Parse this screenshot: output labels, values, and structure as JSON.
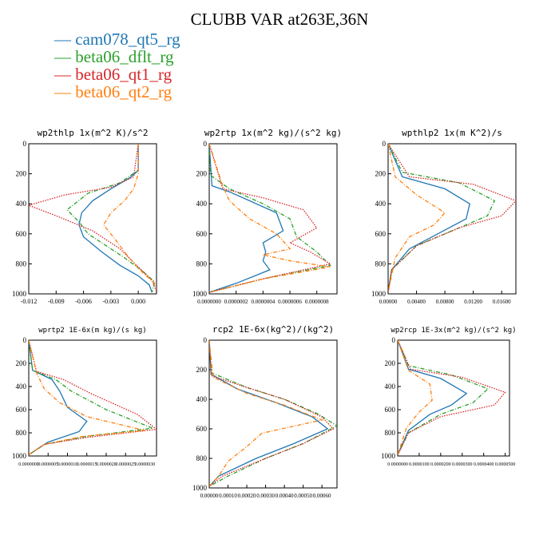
{
  "title": "CLUBB VAR at263E,36N",
  "colors": {
    "cam078_qt5_rg": "#1f77b4",
    "beta06_dflt_rg": "#2ca02c",
    "beta06_qt1_rg": "#d62728",
    "beta06_qt2_rg": "#ff7f0e"
  },
  "legend": [
    {
      "name": "cam078_qt5_rg",
      "color": "#1f77b4"
    },
    {
      "name": "beta06_dflt_rg",
      "color": "#2ca02c"
    },
    {
      "name": "beta06_qt1_rg",
      "color": "#d62728"
    },
    {
      "name": "beta06_qt2_rg",
      "color": "#ff7f0e"
    }
  ],
  "chart_data": [
    {
      "type": "line",
      "title": "wp2thlp  1x(m^2 K)/s^2",
      "xlim": [
        -0.012,
        0.002
      ],
      "ylim": [
        1000,
        0
      ],
      "xticks": [
        "-0.012",
        "-0.009",
        "-0.006",
        "-0.003",
        "0.000"
      ],
      "xtick_values": [
        -0.012,
        -0.009,
        -0.006,
        -0.003,
        0.0
      ],
      "yticks": [
        "0",
        "200",
        "400",
        "600",
        "800",
        "1000"
      ],
      "ytick_values": [
        0,
        200,
        400,
        600,
        800,
        1000
      ],
      "series": [
        {
          "name": "cam078_qt5_rg",
          "style": "solid",
          "x": [
            0,
            0,
            -0.001,
            -0.003,
            -0.005,
            -0.0062,
            -0.0065,
            -0.006,
            -0.004,
            -0.002,
            0,
            0.0012,
            0.0015
          ],
          "y": [
            0,
            180,
            230,
            300,
            380,
            460,
            540,
            620,
            720,
            810,
            880,
            940,
            990
          ]
        },
        {
          "name": "beta06_dflt_rg",
          "style": "dashdot",
          "x": [
            0,
            0,
            -0.002,
            -0.0055,
            -0.0078,
            -0.0065,
            -0.0055,
            -0.0035,
            -0.0015,
            0.0005,
            0.0018,
            0.0015
          ],
          "y": [
            0,
            175,
            260,
            330,
            440,
            520,
            600,
            680,
            760,
            850,
            920,
            990
          ]
        },
        {
          "name": "beta06_qt1_rg",
          "style": "dotted",
          "x": [
            0,
            -0.0005,
            -0.003,
            -0.008,
            -0.012,
            -0.009,
            -0.005,
            -0.002,
            0,
            0.0015,
            0.002
          ],
          "y": [
            0,
            220,
            290,
            340,
            410,
            480,
            580,
            700,
            820,
            910,
            985
          ]
        },
        {
          "name": "beta06_qt2_rg",
          "style": "dashdot",
          "x": [
            0,
            0,
            -0.0005,
            -0.0015,
            -0.003,
            -0.0038,
            -0.0025,
            -0.001,
            0.0005,
            0.0018,
            0.0022
          ],
          "y": [
            0,
            200,
            300,
            380,
            460,
            540,
            640,
            760,
            860,
            930,
            985
          ]
        }
      ]
    },
    {
      "type": "line",
      "title": "wp2rtp  1x(m^2 kg)/(s^2 kg)",
      "xlim": [
        0.0,
        9.5e-07
      ],
      "ylim": [
        1000,
        0
      ],
      "xticks": [
        "0.0000000",
        "0.0000002",
        "0.0000004",
        "0.0000006",
        "0.0000008"
      ],
      "xtick_values": [
        0.0,
        2e-07,
        4e-07,
        6e-07,
        8e-07
      ],
      "yticks": [
        "0",
        "200",
        "400",
        "600",
        "800",
        "1000"
      ],
      "ytick_values": [
        0,
        200,
        400,
        600,
        800,
        1000
      ],
      "series": [
        {
          "name": "cam078_qt5_rg",
          "style": "solid",
          "x": [
            0,
            2e-08,
            1.5e-07,
            3e-07,
            5e-07,
            5.5e-07,
            4e-07,
            4.2e-07,
            4e-07,
            4.5e-07,
            2e-07,
            0.0
          ],
          "y": [
            0,
            280,
            320,
            380,
            460,
            580,
            660,
            720,
            780,
            840,
            930,
            990
          ]
        },
        {
          "name": "beta06_dflt_rg",
          "style": "dashdot",
          "x": [
            0,
            1e-08,
            1.5e-07,
            4e-07,
            6e-07,
            6.5e-07,
            8e-07,
            9e-07,
            4e-07,
            0.0
          ],
          "y": [
            0,
            210,
            300,
            400,
            500,
            620,
            720,
            810,
            900,
            990
          ]
        },
        {
          "name": "beta06_qt1_rg",
          "style": "dotted",
          "x": [
            0,
            1e-07,
            4e-07,
            7e-07,
            8e-07,
            6e-07,
            7.5e-07,
            9e-07,
            4e-07,
            0.0
          ],
          "y": [
            0,
            300,
            360,
            440,
            560,
            660,
            720,
            800,
            900,
            990
          ]
        },
        {
          "name": "beta06_qt2_rg",
          "style": "dashdot",
          "x": [
            0,
            1e-07,
            1.5e-07,
            3e-07,
            5e-07,
            6e-07,
            4e-07,
            6e-07,
            9e-07,
            4e-07,
            0.0
          ],
          "y": [
            0,
            280,
            380,
            500,
            600,
            700,
            740,
            780,
            820,
            900,
            990
          ]
        }
      ]
    },
    {
      "type": "line",
      "title": "wpthlp2  1x(m K^2)/s",
      "xlim": [
        0.0,
        0.018
      ],
      "ylim": [
        1000,
        0
      ],
      "xticks": [
        "0.00000",
        "0.00400",
        "0.00800",
        "0.01200",
        "0.01600"
      ],
      "xtick_values": [
        0,
        0.004,
        0.008,
        0.012,
        0.016
      ],
      "yticks": [
        "0",
        "200",
        "400",
        "600",
        "800",
        "1000"
      ],
      "ytick_values": [
        0,
        200,
        400,
        600,
        800,
        1000
      ],
      "series": [
        {
          "name": "cam078_qt5_rg",
          "style": "solid",
          "x": [
            0,
            0.002,
            0.008,
            0.0115,
            0.011,
            0.007,
            0.003,
            0.0005,
            0
          ],
          "y": [
            0,
            220,
            300,
            400,
            500,
            600,
            700,
            840,
            990
          ]
        },
        {
          "name": "beta06_dflt_rg",
          "style": "dashdot",
          "x": [
            0,
            0.002,
            0.01,
            0.015,
            0.014,
            0.01,
            0.004,
            0.0005,
            0
          ],
          "y": [
            0,
            190,
            260,
            380,
            480,
            560,
            680,
            840,
            990
          ]
        },
        {
          "name": "beta06_qt1_rg",
          "style": "dotted",
          "x": [
            0,
            0.003,
            0.012,
            0.018,
            0.016,
            0.01,
            0.004,
            0.0005,
            0
          ],
          "y": [
            0,
            220,
            270,
            380,
            480,
            560,
            680,
            840,
            990
          ]
        },
        {
          "name": "beta06_qt2_rg",
          "style": "dashdot",
          "x": [
            0,
            0.001,
            0.004,
            0.008,
            0.0065,
            0.003,
            0.001,
            0
          ],
          "y": [
            0,
            220,
            340,
            460,
            540,
            620,
            760,
            990
          ]
        }
      ]
    },
    {
      "type": "line",
      "title": "wprtp2  1E-6x(m kg)/(s kg)",
      "xlim": [
        0.0,
        3.3e-06
      ],
      "ylim": [
        1000,
        0
      ],
      "xticks": [
        "0.0000000",
        "0.0000005",
        "0.0000010",
        "0.0000015",
        "0.0000020",
        "0.0000025",
        "0.0000030"
      ],
      "xtick_values": [
        0,
        5e-07,
        1e-06,
        1.5e-06,
        2e-06,
        2.5e-06,
        3e-06
      ],
      "yticks": [
        "0",
        "200",
        "400",
        "600",
        "800",
        "1000"
      ],
      "ytick_values": [
        0,
        200,
        400,
        600,
        800,
        1000
      ],
      "series": [
        {
          "name": "cam078_qt5_rg",
          "style": "solid",
          "x": [
            0,
            1e-07,
            6e-07,
            8e-07,
            1e-06,
            1.5e-06,
            1.3e-06,
            5e-07,
            0
          ],
          "y": [
            0,
            260,
            340,
            440,
            580,
            700,
            790,
            880,
            990
          ]
        },
        {
          "name": "beta06_dflt_rg",
          "style": "dashdot",
          "x": [
            0,
            1e-07,
            7e-07,
            1.1e-06,
            2e-06,
            3.2e-06,
            1.5e-06,
            4e-07,
            0
          ],
          "y": [
            0,
            260,
            340,
            440,
            600,
            760,
            830,
            900,
            990
          ]
        },
        {
          "name": "beta06_qt1_rg",
          "style": "dotted",
          "x": [
            0,
            2e-07,
            9e-07,
            1.6e-06,
            2.8e-06,
            3.3e-06,
            1.5e-06,
            4e-07,
            0
          ],
          "y": [
            0,
            270,
            340,
            460,
            640,
            770,
            840,
            900,
            990
          ]
        },
        {
          "name": "beta06_qt2_rg",
          "style": "dashdot",
          "x": [
            0,
            2e-07,
            4e-07,
            8e-07,
            1.5e-06,
            3e-06,
            1.4e-06,
            4e-07,
            0
          ],
          "y": [
            0,
            280,
            420,
            540,
            660,
            780,
            830,
            900,
            990
          ]
        }
      ]
    },
    {
      "type": "line",
      "title": "rcp2  1E-6x(kg^2)/(kg^2)",
      "xlim": [
        0.0,
        0.00068
      ],
      "ylim": [
        1000,
        0
      ],
      "xticks": [
        "0.00000",
        "0.00010",
        "0.00020",
        "0.00030",
        "0.00040",
        "0.00050",
        "0.00060"
      ],
      "xtick_values": [
        0,
        0.0001,
        0.0002,
        0.0003,
        0.0004,
        0.0005,
        0.0006
      ],
      "yticks": [
        "0",
        "200",
        "400",
        "600",
        "800",
        "1000"
      ],
      "ytick_values": [
        0,
        200,
        400,
        600,
        800,
        1000
      ],
      "series": [
        {
          "name": "cam078_qt5_rg",
          "style": "solid",
          "x": [
            0,
            1e-05,
            0.00015,
            0.00035,
            0.00055,
            0.00063,
            0.00045,
            0.00025,
            5e-05,
            0
          ],
          "y": [
            0,
            230,
            330,
            420,
            520,
            600,
            700,
            800,
            920,
            990
          ]
        },
        {
          "name": "beta06_dflt_rg",
          "style": "dashdot",
          "x": [
            0,
            1e-05,
            0.0002,
            0.0004,
            0.00058,
            0.00068,
            0.0005,
            0.0003,
            0.0001,
            0
          ],
          "y": [
            0,
            220,
            320,
            400,
            500,
            580,
            700,
            800,
            920,
            990
          ]
        },
        {
          "name": "beta06_qt1_rg",
          "style": "dotted",
          "x": [
            0,
            1e-05,
            0.0002,
            0.0004,
            0.0006,
            0.00066,
            0.0005,
            0.0003,
            7e-05,
            0
          ],
          "y": [
            0,
            240,
            320,
            400,
            520,
            600,
            700,
            800,
            920,
            990
          ]
        },
        {
          "name": "beta06_qt2_rg",
          "style": "dashdot",
          "x": [
            0,
            2e-05,
            0.0002,
            0.0004,
            0.0006,
            0.00028,
            0.0002,
            0.0001,
            5e-05,
            0
          ],
          "y": [
            0,
            250,
            360,
            440,
            540,
            630,
            720,
            820,
            920,
            990
          ]
        }
      ]
    },
    {
      "type": "line",
      "title": "wp2rcp  1E-3x(m^2 kg)/(s^2 kg)",
      "xlim": [
        0.0,
        5.2e-05
      ],
      "ylim": [
        1000,
        0
      ],
      "xticks": [
        "0.0000000",
        "0.0000100",
        "0.0000200",
        "0.0000300",
        "0.0000400",
        "0.0000500"
      ],
      "xtick_values": [
        0,
        1e-05,
        2e-05,
        3e-05,
        4e-05,
        5e-05
      ],
      "yticks": [
        "0",
        "200",
        "400",
        "600",
        "800",
        "1000"
      ],
      "ytick_values": [
        0,
        200,
        400,
        600,
        800,
        1000
      ],
      "series": [
        {
          "name": "cam078_qt5_rg",
          "style": "solid",
          "x": [
            0,
            5e-06,
            2e-05,
            3.2e-05,
            2.5e-05,
            1.5e-05,
            5e-06,
            0
          ],
          "y": [
            0,
            250,
            330,
            460,
            560,
            640,
            780,
            990
          ]
        },
        {
          "name": "beta06_dflt_rg",
          "style": "dashdot",
          "x": [
            0,
            5e-06,
            2.5e-05,
            4.2e-05,
            3.5e-05,
            2e-05,
            5e-06,
            0
          ],
          "y": [
            0,
            220,
            300,
            420,
            540,
            640,
            800,
            990
          ]
        },
        {
          "name": "beta06_qt1_rg",
          "style": "dotted",
          "x": [
            0,
            6e-06,
            3e-05,
            5e-05,
            4.5e-05,
            2e-05,
            5e-06,
            0
          ],
          "y": [
            0,
            250,
            320,
            450,
            560,
            660,
            800,
            990
          ]
        },
        {
          "name": "beta06_qt2_rg",
          "style": "dashdot",
          "x": [
            0,
            5e-06,
            1.5e-05,
            1.6e-05,
            1e-05,
            4e-06,
            0
          ],
          "y": [
            0,
            260,
            380,
            520,
            620,
            760,
            990
          ]
        }
      ]
    }
  ]
}
